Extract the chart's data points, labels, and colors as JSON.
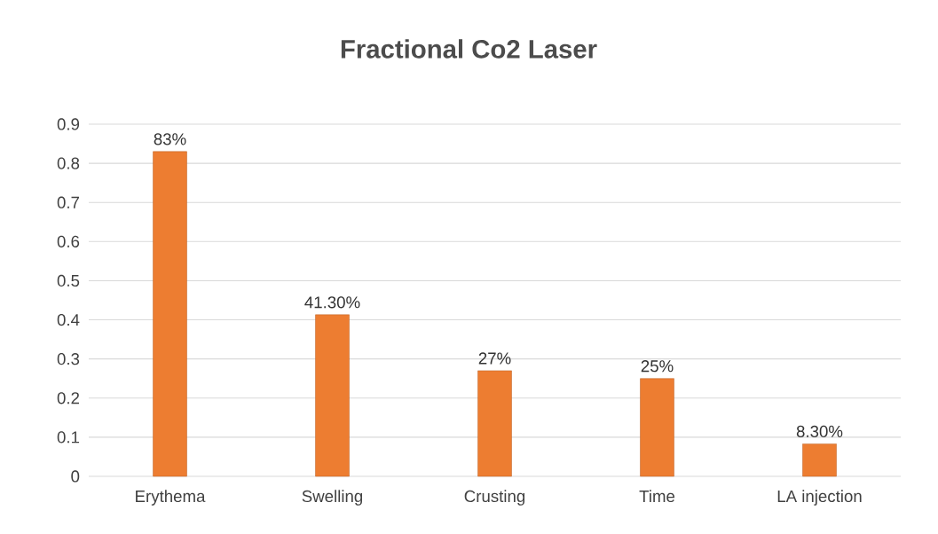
{
  "chart_data": {
    "type": "bar",
    "title": "Fractional Co2 Laser",
    "categories": [
      "Erythema",
      "Swelling",
      "Crusting",
      "Time",
      "LA injection"
    ],
    "values": [
      0.83,
      0.413,
      0.27,
      0.25,
      0.083
    ],
    "value_labels": [
      "83%",
      "41.30%",
      "27%",
      "25%",
      "8.30%"
    ],
    "color": "#ed7d31",
    "ylim": [
      0,
      0.9
    ],
    "yticks": [
      0,
      0.1,
      0.2,
      0.3,
      0.4,
      0.5,
      0.6,
      0.7,
      0.8,
      0.9
    ],
    "grid": "y"
  }
}
